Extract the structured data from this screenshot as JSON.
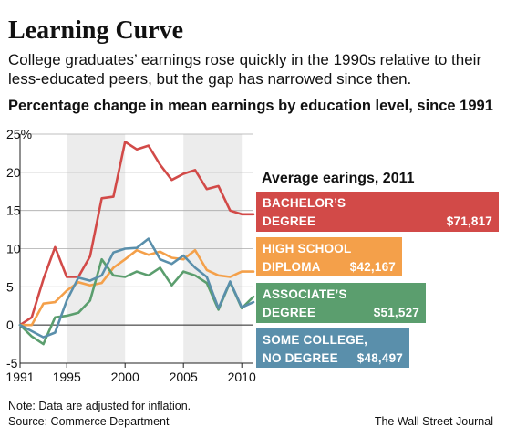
{
  "header": {
    "title": "Learning Curve",
    "subtitle": "College graduates’ earnings rose quickly in the 1990s relative to their less-educated peers, but the gap has narrowed since then."
  },
  "chart_data": {
    "type": "line",
    "title": "Percentage change in mean earnings by education level, since 1991",
    "xlabel": "",
    "ylabel": "",
    "xlim": [
      1991,
      2011
    ],
    "ylim": [
      -5,
      25
    ],
    "x_ticks": [
      "1991",
      "1995",
      "2000",
      "2005",
      "2010"
    ],
    "y_ticks": [
      "25%",
      "20",
      "15",
      "10",
      "5",
      "0",
      "-5"
    ],
    "grid": true,
    "x": [
      1991,
      1992,
      1993,
      1994,
      1995,
      1996,
      1997,
      1998,
      1999,
      2000,
      2001,
      2002,
      2003,
      2004,
      2005,
      2006,
      2007,
      2008,
      2009,
      2010,
      2011
    ],
    "series": [
      {
        "name": "BACHELOR’S DEGREE",
        "color": "#d24a48",
        "values": [
          0,
          1,
          6,
          10.2,
          6.3,
          6.3,
          9,
          16.6,
          16.8,
          24,
          23,
          23.5,
          21,
          19,
          19.8,
          20.3,
          17.8,
          18.2,
          15,
          14.5,
          14.5
        ]
      },
      {
        "name": "HIGH SCHOOL DIPLOMA",
        "color": "#f4a04a",
        "values": [
          0,
          0,
          2.8,
          3,
          4.5,
          5.6,
          5.2,
          5.5,
          7.5,
          8.6,
          9.8,
          9.2,
          9.6,
          8.8,
          8.6,
          9.8,
          7.2,
          6.5,
          6.3,
          7,
          7
        ]
      },
      {
        "name": "ASSOCIATE’S DEGREE",
        "color": "#5b9e6e",
        "values": [
          0,
          -1.5,
          -2.5,
          1,
          1.2,
          1.6,
          3.2,
          8.6,
          6.5,
          6.3,
          7,
          6.5,
          7.5,
          5.2,
          7,
          6.5,
          5.5,
          2,
          5.6,
          2.2,
          3.7
        ]
      },
      {
        "name": "SOME COLLEGE, NO DEGREE",
        "color": "#5a8fab",
        "values": [
          0,
          -0.8,
          -1.6,
          -1,
          3.2,
          6.2,
          5.8,
          6.5,
          9.5,
          10,
          10.1,
          11.3,
          8.6,
          8,
          9.1,
          7.5,
          6.3,
          2.2,
          5.7,
          2.3,
          3
        ]
      }
    ],
    "legend_title": "Average earings, 2011",
    "legend": [
      {
        "line1": "BACHELOR’S",
        "line2": "DEGREE",
        "value": "$71,817",
        "color": "#d24a48"
      },
      {
        "line1": "HIGH SCHOOL",
        "line2": "DIPLOMA",
        "value": "$42,167",
        "color": "#f4a04a"
      },
      {
        "line1": "ASSOCIATE’S",
        "line2": "DEGREE",
        "value": "$51,527",
        "color": "#5b9e6e"
      },
      {
        "line1": "SOME COLLEGE,",
        "line2": "NO DEGREE",
        "value": "$48,497",
        "color": "#5a8fab"
      }
    ],
    "legend_placement": "right"
  },
  "footer": {
    "note": "Note: Data are adjusted for inflation.",
    "source": "Source: Commerce Department",
    "credit": "The Wall Street Journal"
  }
}
